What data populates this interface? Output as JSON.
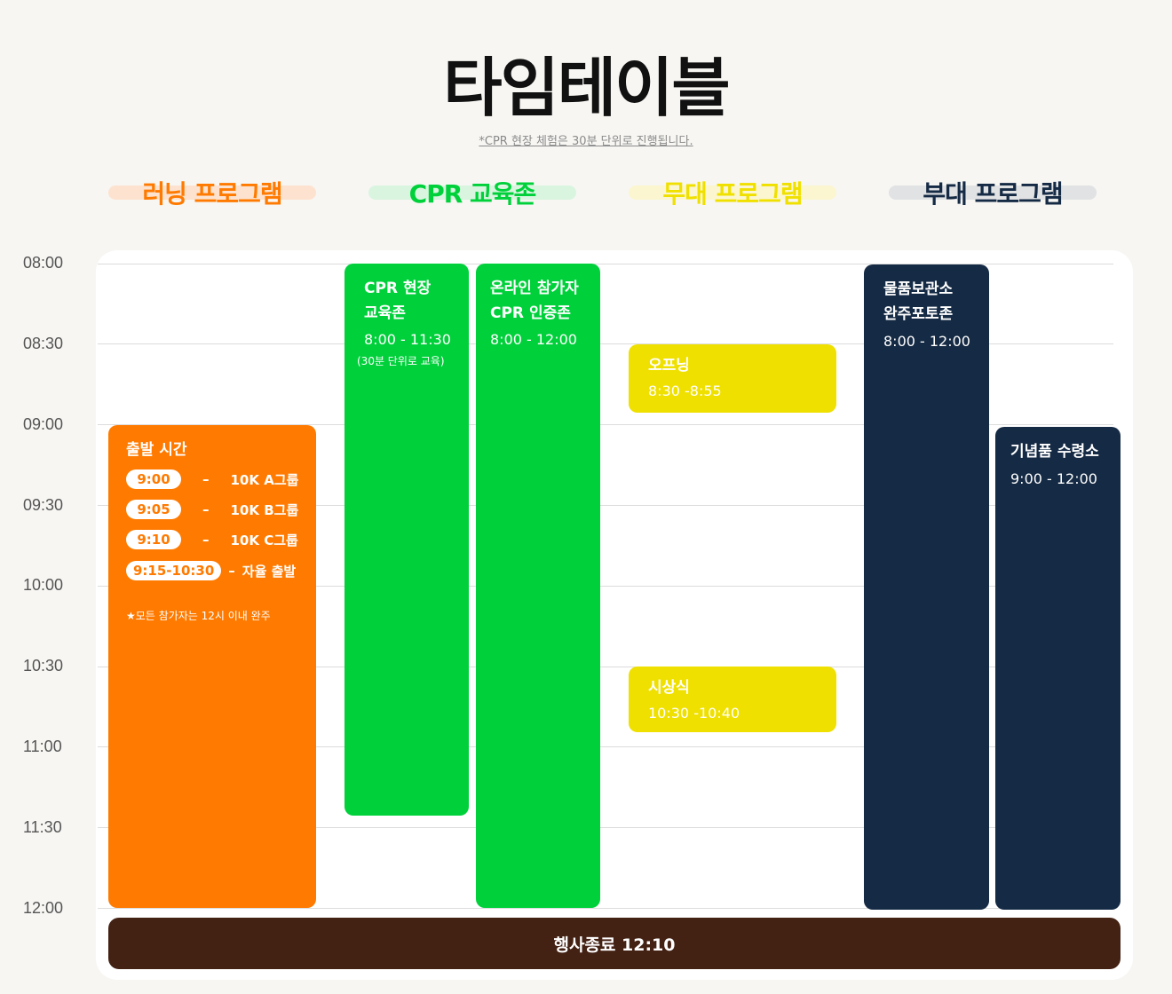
{
  "title": "타임테이블",
  "note": "*CPR 현장 체험은 30분 단위로 진행됩니다.",
  "categories": [
    {
      "label": "러닝 프로그램",
      "color": "#ff7a00",
      "highlight": "#fde3cf"
    },
    {
      "label": "CPR 교육존",
      "color": "#00d13b",
      "highlight": "#d9f5df"
    },
    {
      "label": "무대 프로그램",
      "color": "#f0e000",
      "highlight": "#fbf6cf"
    },
    {
      "label": "부대 프로그램",
      "color": "#152a44",
      "highlight": "#e1e2e4"
    }
  ],
  "times": [
    "08:00",
    "08:30",
    "09:00",
    "09:30",
    "10:00",
    "10:30",
    "11:00",
    "11:30",
    "12:00"
  ],
  "running": {
    "title": "출발 시간",
    "rows": [
      {
        "time": "9:00",
        "group": "10K A그룹"
      },
      {
        "time": "9:05",
        "group": "10K B그룹"
      },
      {
        "time": "9:10",
        "group": "10K C그룹"
      },
      {
        "time": "9:15-10:30",
        "group": "자율 출발"
      }
    ],
    "dash": "–",
    "footnote": "★모든 참가자는 12시 이내 완주",
    "color": "#ff7a00"
  },
  "cpr": [
    {
      "line1": "CPR 현장",
      "line2": "교육존",
      "time": "8:00 - 11:30",
      "sub": "(30분 단위로 교육)"
    },
    {
      "line1": "온라인 참가자",
      "line2": "CPR 인증존",
      "time": "8:00 - 12:00"
    }
  ],
  "cpr_color": "#00d13b",
  "stage": [
    {
      "name": "오프닝",
      "time": "8:30 -8:55"
    },
    {
      "name": "시상식",
      "time": "10:30 -10:40"
    }
  ],
  "stage_color": "#efe000",
  "side": [
    {
      "line1": "물품보관소",
      "line2": "완주포토존",
      "time": "8:00 - 12:00"
    },
    {
      "line1": "기념품 수령소",
      "time": "9:00 - 12:00"
    }
  ],
  "side_color": "#152a44",
  "end": {
    "label": "행사종료 12:10",
    "color": "#432113"
  }
}
